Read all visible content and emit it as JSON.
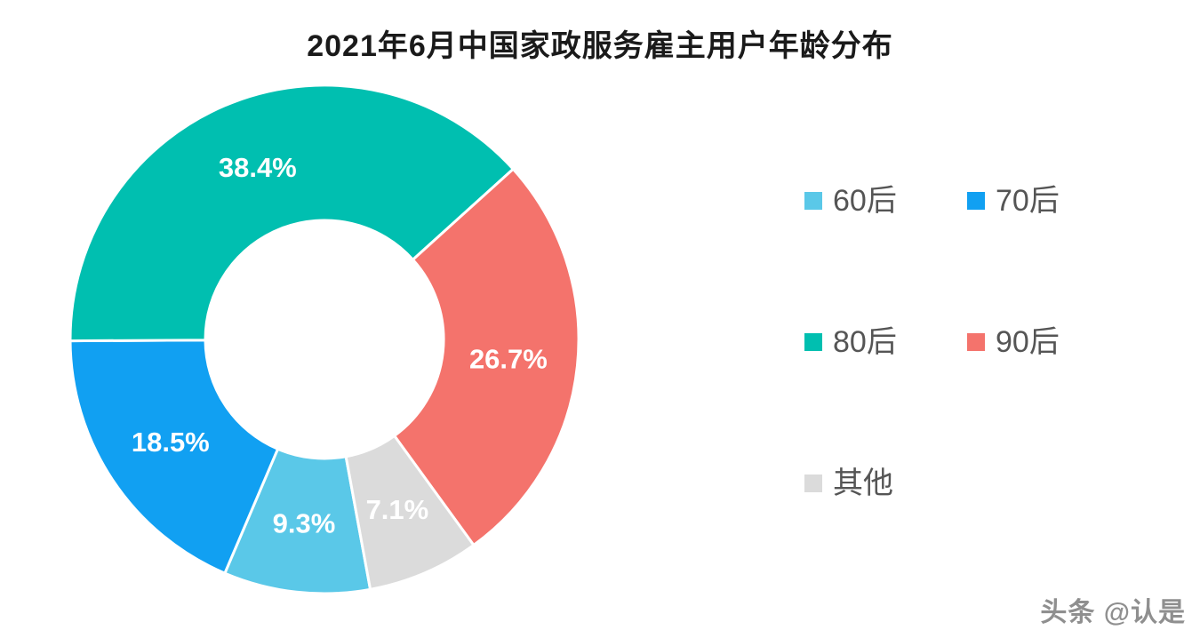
{
  "watermark": "头条 @认是",
  "chart_data": {
    "type": "pie",
    "subtype": "donut",
    "title": "2021年6月中国家政服务雇主用户年龄分布",
    "legend_position": "right",
    "start_angle_deg": 169.6,
    "inner_radius_ratio": 0.47,
    "label_format": "percent-inside",
    "segments": [
      {
        "name": "60后",
        "value": 9.3,
        "color": "#5AC8E8"
      },
      {
        "name": "70后",
        "value": 18.5,
        "color": "#11A0F2"
      },
      {
        "name": "80后",
        "value": 38.4,
        "color": "#00BFB0"
      },
      {
        "name": "90后",
        "value": 26.7,
        "color": "#F4736C"
      },
      {
        "name": "其他",
        "value": 7.1,
        "color": "#DBDBDB"
      }
    ]
  }
}
